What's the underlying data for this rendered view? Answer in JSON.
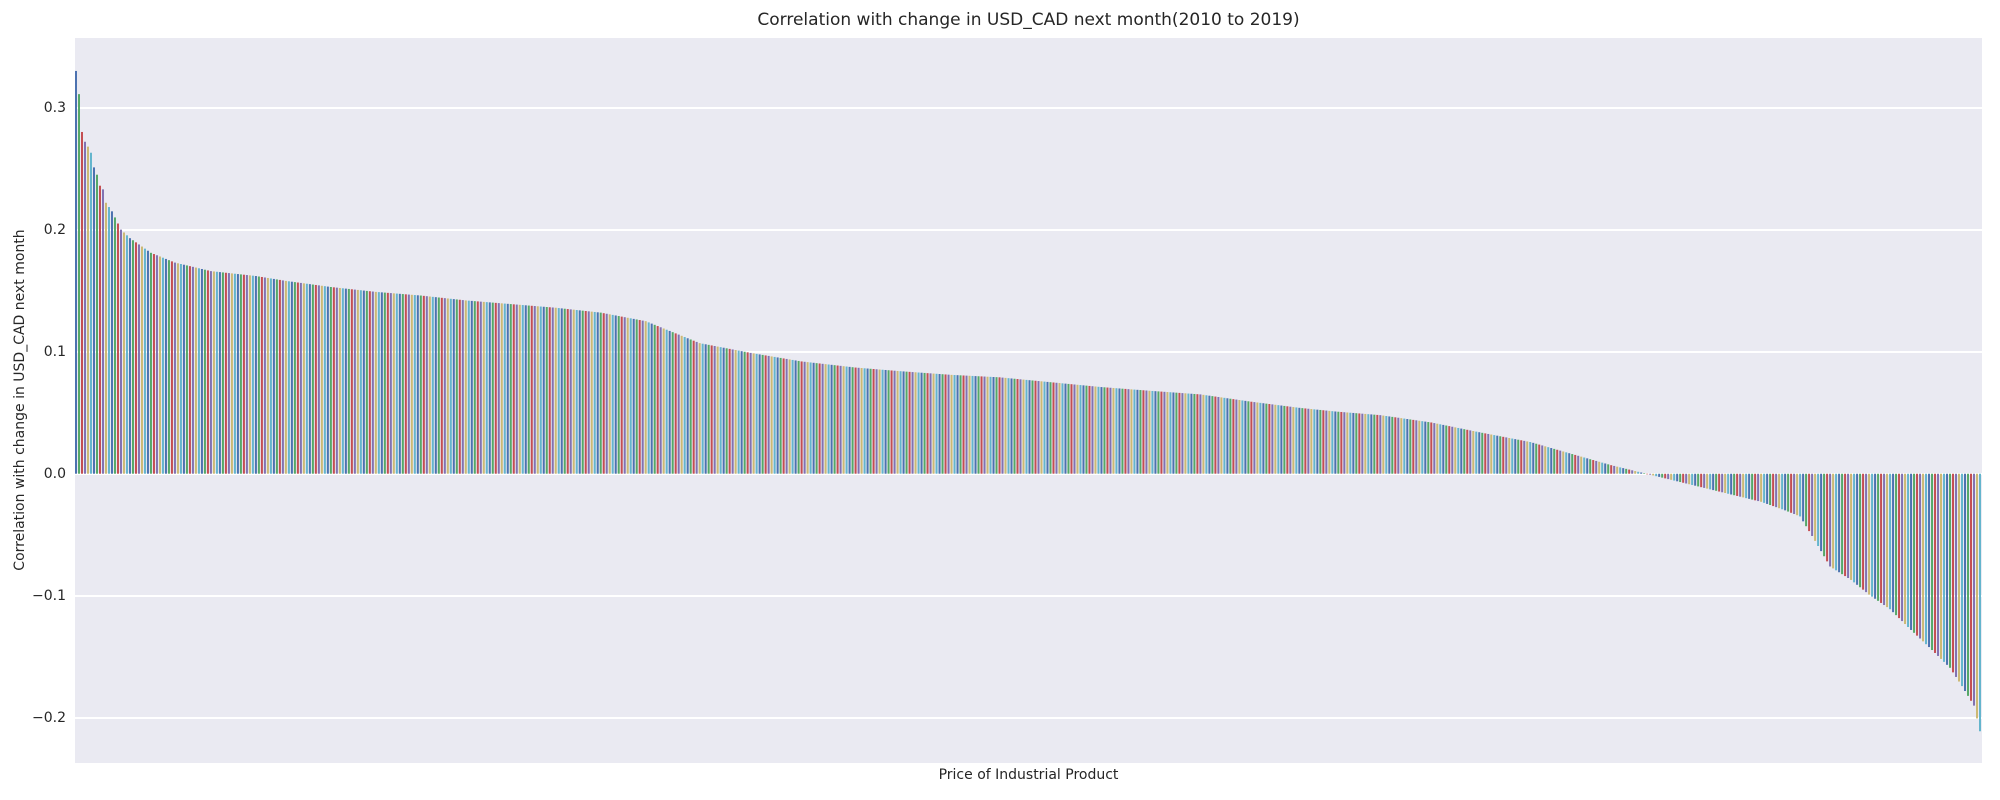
{
  "chart_data": {
    "type": "bar",
    "title": "Correlation with change in USD_CAD next month(2010 to 2019)",
    "xlabel": "Price of Industrial Product",
    "ylabel": "Correlation with change in USD_CAD next month",
    "legend": false,
    "grid": true,
    "plot_bg_color": "#eaeaf2",
    "grid_color": "#ffffff",
    "text_color": "#262626",
    "ylim": [
      -0.237,
      0.357
    ],
    "yticks": [
      {
        "value": 0.3,
        "label": "0.3"
      },
      {
        "value": 0.2,
        "label": "0.2"
      },
      {
        "value": 0.1,
        "label": "0.1"
      },
      {
        "value": 0.0,
        "label": "0.0"
      },
      {
        "value": -0.1,
        "label": "−0.1"
      },
      {
        "value": -0.2,
        "label": "−0.2"
      }
    ],
    "x_tick_labels": "none (one unlabeled bar per industrial product)",
    "bar_count": 636,
    "sort_order": "descending",
    "max_value": 0.33,
    "min_value": -0.211,
    "zero_crossing_index": 522,
    "palette": [
      "#4c72b0",
      "#55a868",
      "#c44e52",
      "#8172b2",
      "#ccb974",
      "#64b5cd"
    ],
    "envelope_points": [
      [
        0,
        0.33
      ],
      [
        1,
        0.311
      ],
      [
        2,
        0.28
      ],
      [
        3,
        0.272
      ],
      [
        4,
        0.268
      ],
      [
        5,
        0.263
      ],
      [
        6,
        0.251
      ],
      [
        7,
        0.245
      ],
      [
        8,
        0.236
      ],
      [
        9,
        0.233
      ],
      [
        10,
        0.222
      ],
      [
        12,
        0.215
      ],
      [
        15,
        0.2
      ],
      [
        18,
        0.193
      ],
      [
        25,
        0.181
      ],
      [
        33,
        0.173
      ],
      [
        45,
        0.166
      ],
      [
        60,
        0.162
      ],
      [
        70,
        0.158
      ],
      [
        85,
        0.153
      ],
      [
        100,
        0.149
      ],
      [
        115,
        0.146
      ],
      [
        130,
        0.142
      ],
      [
        145,
        0.139
      ],
      [
        160,
        0.136
      ],
      [
        175,
        0.132
      ],
      [
        190,
        0.125
      ],
      [
        208,
        0.107
      ],
      [
        225,
        0.099
      ],
      [
        242,
        0.092
      ],
      [
        260,
        0.087
      ],
      [
        275,
        0.084
      ],
      [
        292,
        0.081
      ],
      [
        308,
        0.079
      ],
      [
        325,
        0.075
      ],
      [
        342,
        0.071
      ],
      [
        358,
        0.068
      ],
      [
        375,
        0.065
      ],
      [
        392,
        0.059
      ],
      [
        408,
        0.054
      ],
      [
        420,
        0.051
      ],
      [
        435,
        0.048
      ],
      [
        452,
        0.042
      ],
      [
        468,
        0.034
      ],
      [
        485,
        0.026
      ],
      [
        502,
        0.014
      ],
      [
        512,
        0.007
      ],
      [
        522,
        0.001
      ],
      [
        532,
        -0.005
      ],
      [
        542,
        -0.011
      ],
      [
        552,
        -0.017
      ],
      [
        562,
        -0.023
      ],
      [
        570,
        -0.03
      ],
      [
        575,
        -0.035
      ],
      [
        580,
        -0.055
      ],
      [
        585,
        -0.076
      ],
      [
        592,
        -0.087
      ],
      [
        598,
        -0.099
      ],
      [
        605,
        -0.111
      ],
      [
        612,
        -0.128
      ],
      [
        618,
        -0.142
      ],
      [
        625,
        -0.159
      ],
      [
        629,
        -0.174
      ],
      [
        633,
        -0.19
      ],
      [
        635,
        -0.211
      ]
    ]
  }
}
